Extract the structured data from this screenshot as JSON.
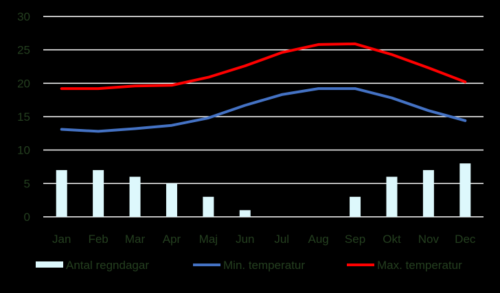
{
  "chart_data": {
    "type": "bar",
    "title": "",
    "xlabel": "",
    "ylabel": "",
    "categories": [
      "Jan",
      "Feb",
      "Mar",
      "Apr",
      "Maj",
      "Jun",
      "Jul",
      "Aug",
      "Sep",
      "Okt",
      "Nov",
      "Dec"
    ],
    "ylim": [
      0,
      30
    ],
    "yticks": [
      0,
      5,
      10,
      15,
      20,
      25,
      30
    ],
    "grid": true,
    "legend_position": "bottom",
    "series": [
      {
        "name": "Antal regndagar",
        "type": "bar",
        "color": "#DDF8FC",
        "values": [
          7,
          7,
          6,
          5,
          3,
          1,
          0,
          0,
          3,
          6,
          7,
          8
        ]
      },
      {
        "name": "Min. temperatur",
        "type": "line",
        "color": "#4472C4",
        "values": [
          13.1,
          12.8,
          13.2,
          13.7,
          14.8,
          16.7,
          18.3,
          19.2,
          19.2,
          17.8,
          15.9,
          14.4
        ]
      },
      {
        "name": "Max. temperatur",
        "type": "line",
        "color": "#FF0000",
        "values": [
          19.2,
          19.2,
          19.6,
          19.7,
          20.9,
          22.6,
          24.6,
          25.8,
          25.9,
          24.3,
          22.3,
          20.2
        ]
      }
    ],
    "colors": {
      "background": "#000000",
      "gridline": "#FFFFFF",
      "label_text": "#243F1F"
    }
  }
}
